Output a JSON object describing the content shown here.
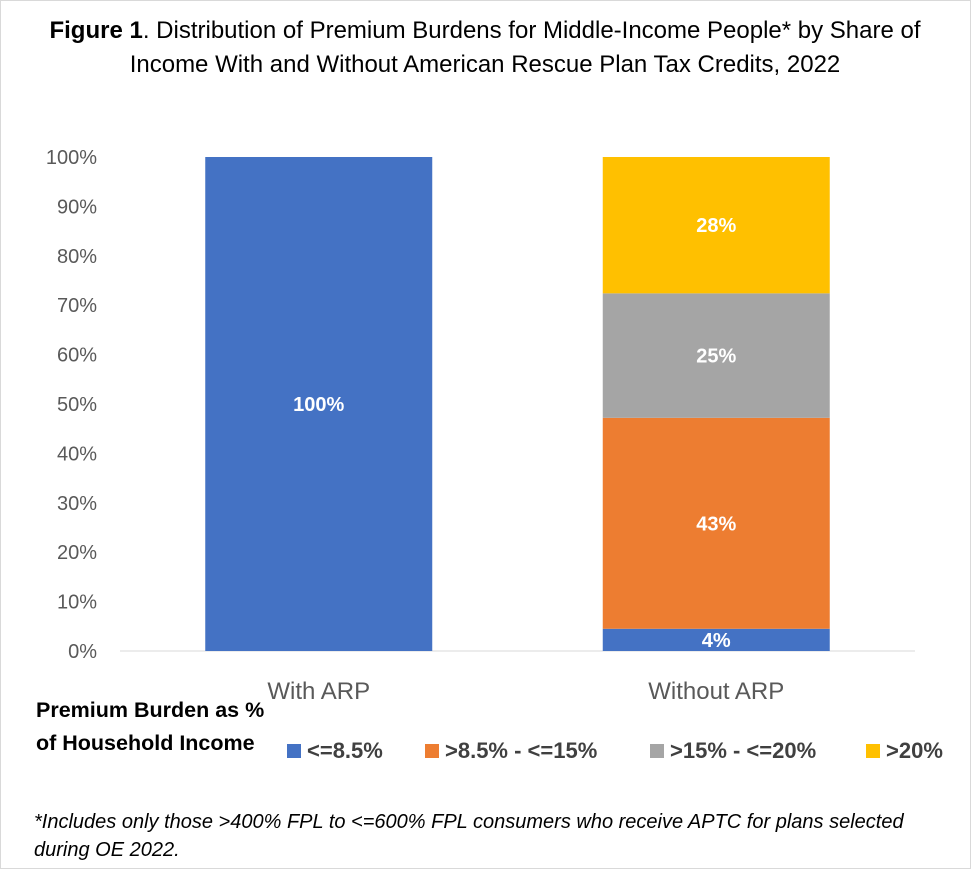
{
  "title": {
    "bold": "Figure 1",
    "rest": ". Distribution of Premium Burdens for Middle-Income People* by Share of Income With and Without American Rescue Plan Tax Credits, 2022"
  },
  "chart_data": {
    "type": "bar",
    "stacked": true,
    "categories": [
      "With ARP",
      "Without ARP"
    ],
    "ylim": [
      0,
      100
    ],
    "yticks": [
      "0%",
      "10%",
      "20%",
      "30%",
      "40%",
      "50%",
      "60%",
      "70%",
      "80%",
      "90%",
      "100%"
    ],
    "series": [
      {
        "name": "<=8.5%",
        "color": "#4472c4",
        "values": [
          100,
          4.5
        ],
        "labels": [
          "100%",
          "4%"
        ]
      },
      {
        "name": ">8.5% - <=15%",
        "color": "#ed7d31",
        "values": [
          0,
          42.7
        ],
        "labels": [
          "",
          "43%"
        ]
      },
      {
        "name": ">15% - <=20%",
        "color": "#a5a5a5",
        "values": [
          0,
          25.2
        ],
        "labels": [
          "",
          "25%"
        ]
      },
      {
        "name": ">20%",
        "color": "#ffc000",
        "values": [
          0,
          27.6
        ],
        "labels": [
          "",
          "28%"
        ]
      }
    ],
    "legend_title": "Premium Burden as % of Household Income",
    "legend_position": "bottom"
  },
  "footnote": "*Includes only those >400% FPL to <=600% FPL consumers who receive APTC for plans selected during OE 2022."
}
